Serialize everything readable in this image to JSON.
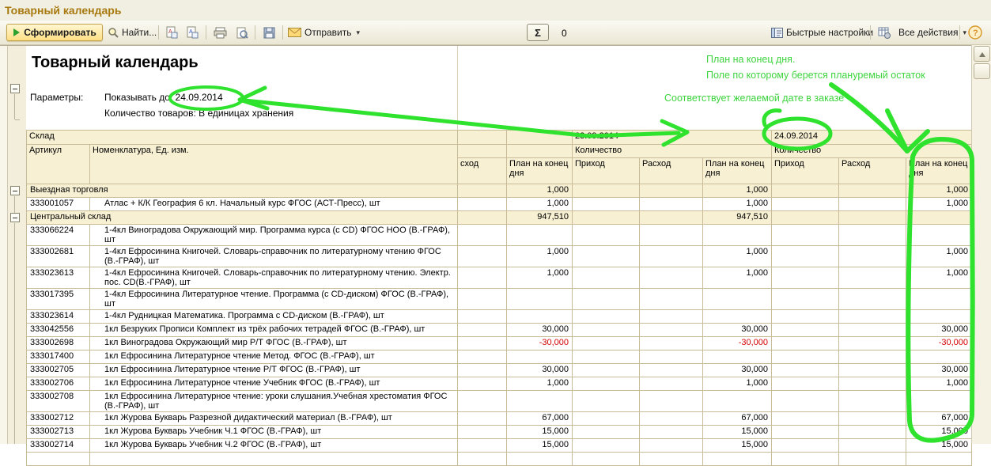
{
  "window": {
    "title": "Товарный календарь"
  },
  "toolbar": {
    "generate_label": "Сформировать",
    "find_label": "Найти...",
    "send_label": "Отправить",
    "sum_value": "0",
    "quick_settings_label": "Быстрые настройки",
    "all_actions_label": "Все действия",
    "help_glyph": "?",
    "sum_glyph": "Σ",
    "dropdown_glyph": "▾"
  },
  "report": {
    "title": "Товарный календарь",
    "params_label": "Параметры:",
    "param_line1": "Показывать до: 24.09.2014",
    "param_line2": "Количество товаров: В единицах хранения"
  },
  "annotations": {
    "line1": "План на конец дня.",
    "line2": "Поле по которому берется плануремый остаток",
    "line3": "Соответствует желаемой дате в заказе"
  },
  "colors": {
    "annotation_green": "#2ee22e",
    "negative_red": "#d40000",
    "title_orange": "#a8790f",
    "cell_beige": "#f7f0d3",
    "grid_line": "#c8bb97"
  },
  "icons": {
    "generate": "play-triangle",
    "find": "magnifier",
    "copy1": "document-a",
    "copy2": "document-a",
    "print": "printer",
    "preview": "page-magnifier",
    "save": "floppy",
    "send": "envelope",
    "quick_settings": "panel",
    "all_actions": "table-gear",
    "help": "question-circle",
    "scroll_up": "triangle-up",
    "expander": "minus-box"
  },
  "table": {
    "header": {
      "sklad": "Склад",
      "artikul": "Артикул",
      "nomenclature": "Номенклатура, Ед. изм.",
      "date1": "23.09.2014",
      "date2": "24.09.2014",
      "qty1": "Количество",
      "qty2": "Количество",
      "rashod_cut": "сход",
      "plan_day1": "План на конец дня",
      "prihod1": "Приход",
      "rashod1": "Расход",
      "plan1": "План на конец дня",
      "prihod2": "Приход",
      "rashod2": "Расход",
      "plan2": "План на конец дня"
    },
    "rows": [
      {
        "t": "group",
        "name": "Выездная торговля",
        "v": [
          "1,000",
          "1,000",
          "1,000"
        ],
        "h": 1,
        "neg": false
      },
      {
        "t": "item",
        "art": "333001057",
        "name": "Атлас + К/К География 6 кл. Начальный курс ФГОС (АСТ-Пресс), шт",
        "v": [
          "1,000",
          "1,000",
          "1,000"
        ],
        "h": 1,
        "neg": false
      },
      {
        "t": "group",
        "name": "Центральный склад",
        "v": [
          "947,510",
          "947,510",
          ""
        ],
        "h": 1,
        "neg": false
      },
      {
        "t": "item",
        "art": "333066224",
        "name": "1-4кл Виноградова Окружающий мир. Программа курса (с CD) ФГОС НОО (В.-ГРАФ), шт",
        "v": [
          "",
          "",
          ""
        ],
        "h": 2,
        "neg": false
      },
      {
        "t": "item",
        "art": "333002681",
        "name": "1-4кл Ефросинина  Книгочей. Словарь-справочник по литературному чтению ФГОС (В.-ГРАФ), шт",
        "v": [
          "1,000",
          "1,000",
          "1,000"
        ],
        "h": 2,
        "neg": false
      },
      {
        "t": "item",
        "art": "333023613",
        "name": "1-4кл Ефросинина  Книгочей. Словарь-справочник по литературному чтению. Электр. пос. CD(В.-ГРАФ), шт",
        "v": [
          "1,000",
          "1,000",
          "1,000"
        ],
        "h": 2,
        "neg": false
      },
      {
        "t": "item",
        "art": "333017395",
        "name": "1-4кл Ефросинина  Литературное чтение. Программа (с CD-диском) ФГОС  (В.-ГРАФ), шт",
        "v": [
          "",
          "",
          ""
        ],
        "h": 2,
        "neg": false
      },
      {
        "t": "item",
        "art": "333023614",
        "name": "1-4кл Рудницкая Математика. Программа с CD-диском (В.-ГРАФ), шт",
        "v": [
          "",
          "",
          ""
        ],
        "h": 1,
        "neg": false
      },
      {
        "t": "item",
        "art": "333042556",
        "name": "1кл Безруких Прописи Комплект из трёх рабочих тетрадей ФГОС (В.-ГРАФ), шт",
        "v": [
          "30,000",
          "30,000",
          "30,000"
        ],
        "h": 1,
        "neg": false
      },
      {
        "t": "item",
        "art": "333002698",
        "name": "1кл Виноградова Окружающий мир Р/Т ФГОС (В.-ГРАФ), шт",
        "v": [
          "-30,000",
          "-30,000",
          "-30,000"
        ],
        "h": 1,
        "neg": true
      },
      {
        "t": "item",
        "art": "333017400",
        "name": "1кл Ефросинина Литературное чтение Метод. ФГОС (В.-ГРАФ), шт",
        "v": [
          "",
          "",
          ""
        ],
        "h": 1,
        "neg": false
      },
      {
        "t": "item",
        "art": "333002705",
        "name": "1кл Ефросинина Литературное чтение Р/Т ФГОС (В.-ГРАФ), шт",
        "v": [
          "30,000",
          "30,000",
          "30,000"
        ],
        "h": 1,
        "neg": false
      },
      {
        "t": "item",
        "art": "333002706",
        "name": "1кл Ефросинина Литературное чтение Учебник ФГОС (В.-ГРАФ), шт",
        "v": [
          "1,000",
          "1,000",
          "1,000"
        ],
        "h": 1,
        "neg": false
      },
      {
        "t": "item",
        "art": "333002708",
        "name": "1кл Ефросинина Литературное чтение: уроки слушания.Учебная хрестоматия ФГОС (В.-ГРАФ), шт",
        "v": [
          "",
          "",
          ""
        ],
        "h": 2,
        "neg": false
      },
      {
        "t": "item",
        "art": "333002712",
        "name": "1кл Журова Букварь Разрезной дидактический материал (В.-ГРАФ), шт",
        "v": [
          "67,000",
          "67,000",
          "67,000"
        ],
        "h": 1,
        "neg": false
      },
      {
        "t": "item",
        "art": "333002713",
        "name": "1кл Журова Букварь Учебник  Ч.1 ФГОС (В.-ГРАФ), шт",
        "v": [
          "15,000",
          "15,000",
          "15,000"
        ],
        "h": 1,
        "neg": false
      },
      {
        "t": "item",
        "art": "333002714",
        "name": "1кл Журова Букварь Учебник  Ч.2 ФГОС (В.-ГРАФ), шт",
        "v": [
          "15,000",
          "15,000",
          "15,000"
        ],
        "h": 1,
        "neg": false
      },
      {
        "t": "item",
        "art": "",
        "name": "",
        "v": [
          "",
          "",
          ""
        ],
        "h": 1,
        "neg": false
      }
    ]
  }
}
